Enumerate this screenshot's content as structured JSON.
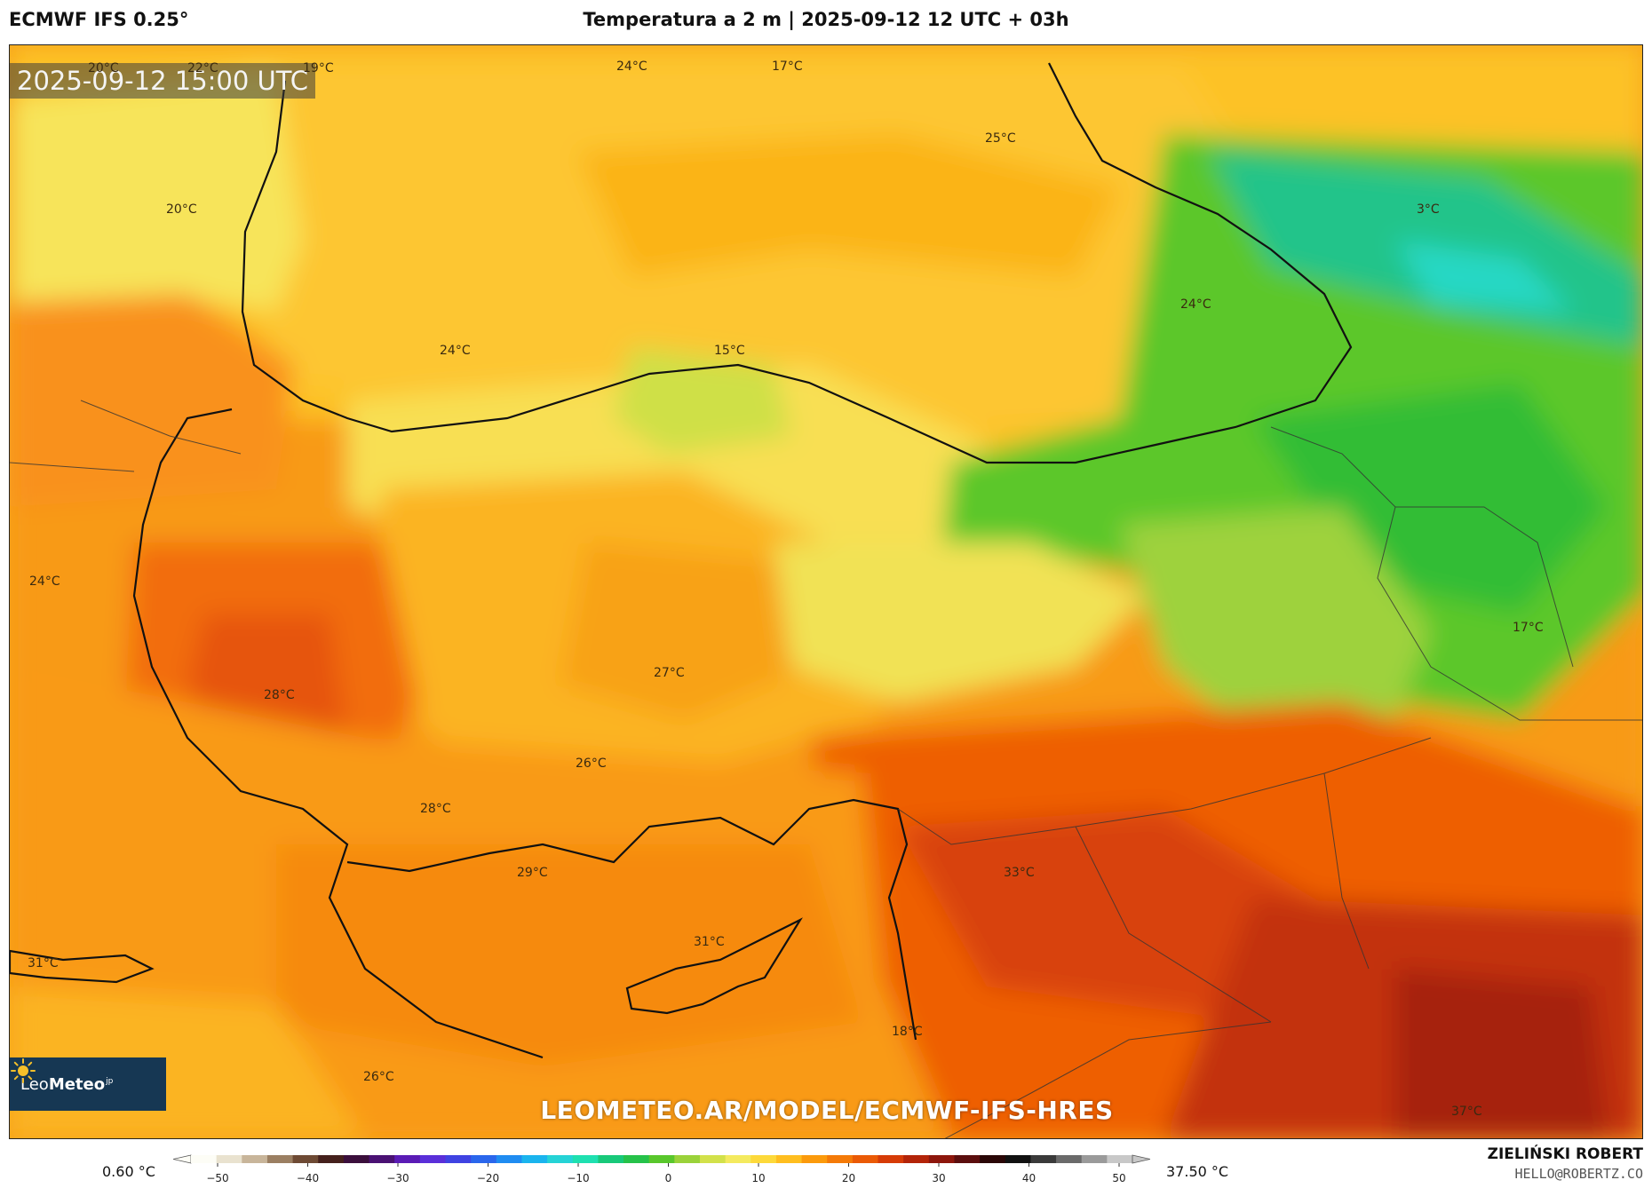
{
  "header": {
    "model": "ECMWF IFS 0.25°",
    "title": "Temperatura a 2 m | 2025-09-12 12 UTC + 03h"
  },
  "map": {
    "timestamp": "2025-09-12 15:00 UTC",
    "labels": [
      {
        "id": "l1",
        "text": "20°C"
      },
      {
        "id": "l2",
        "text": "22°C"
      },
      {
        "id": "l3",
        "text": "19°C"
      },
      {
        "id": "l4",
        "text": "24°C"
      },
      {
        "id": "l5",
        "text": "17°C"
      },
      {
        "id": "l6",
        "text": "25°C"
      },
      {
        "id": "l7",
        "text": "20°C"
      },
      {
        "id": "l8",
        "text": "3°C"
      },
      {
        "id": "l9",
        "text": "24°C"
      },
      {
        "id": "l10",
        "text": "24°C"
      },
      {
        "id": "l11",
        "text": "15°C"
      },
      {
        "id": "l12",
        "text": "24°C"
      },
      {
        "id": "l13",
        "text": "17°C"
      },
      {
        "id": "l14",
        "text": "27°C"
      },
      {
        "id": "l15",
        "text": "28°C"
      },
      {
        "id": "l16",
        "text": "26°C"
      },
      {
        "id": "l17",
        "text": "28°C"
      },
      {
        "id": "l18",
        "text": "29°C"
      },
      {
        "id": "l19",
        "text": "33°C"
      },
      {
        "id": "l20",
        "text": "31°C"
      },
      {
        "id": "l21",
        "text": "31°C"
      },
      {
        "id": "l22",
        "text": "18°C"
      },
      {
        "id": "l23",
        "text": "26°C"
      },
      {
        "id": "l24",
        "text": "37°C"
      }
    ],
    "watermark": "LEOMETEO.AR/MODEL/ECMWF-IFS-HRES",
    "logo_text": "Leo",
    "logo_bold": "Meteo",
    "logo_sup": "jp"
  },
  "colorbar": {
    "min_label": "0.60 °C",
    "max_label": "37.50 °C",
    "ticks": [
      "−50",
      "−40",
      "−30",
      "−20",
      "−10",
      "0",
      "10",
      "20",
      "30",
      "40",
      "50"
    ],
    "colors": [
      "#fdfdf6",
      "#e9e2cf",
      "#c8b59a",
      "#9b7f62",
      "#6e4a34",
      "#45201c",
      "#3b0f3c",
      "#4a1173",
      "#5a1bb5",
      "#5a2fd9",
      "#3f43e2",
      "#2a66ec",
      "#1f8cf1",
      "#1ab4ee",
      "#25d3d6",
      "#1ee0b0",
      "#18c97a",
      "#26c24a",
      "#59c72c",
      "#9ad23a",
      "#d2e14a",
      "#f4ea5e",
      "#fdd93a",
      "#ffbe1f",
      "#fb9a0c",
      "#f47a08",
      "#ea5a06",
      "#d63b07",
      "#b32409",
      "#8d160c",
      "#5b0e0e",
      "#2a0707",
      "#111111",
      "#3a3a3a",
      "#6a6a6a",
      "#9a9a9a",
      "#c8c8c8"
    ]
  },
  "footer": {
    "author": "ZIELIŃSKI ROBERT",
    "contact": "HELLO@ROBERTZ.CO"
  }
}
